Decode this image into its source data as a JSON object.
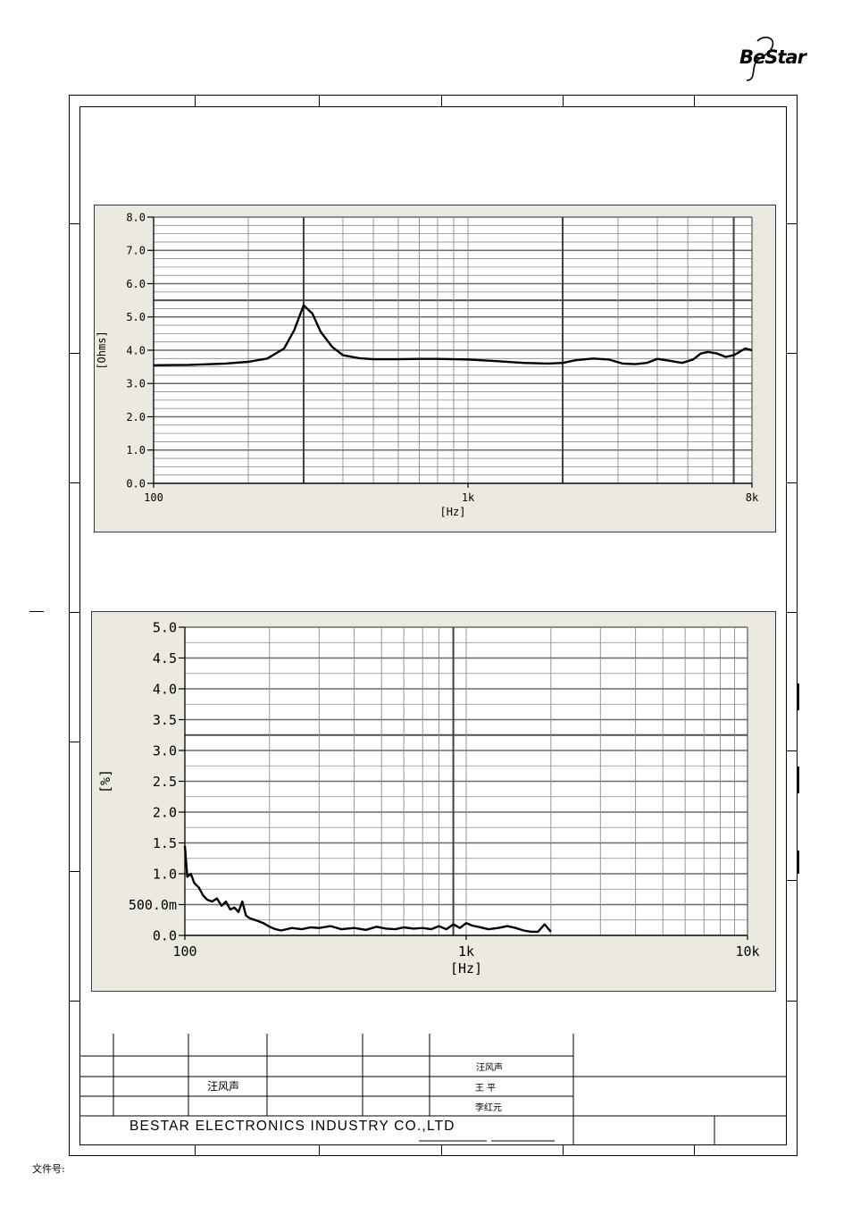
{
  "logo": {
    "text": "BeStar"
  },
  "footer": {
    "company": "BESTAR  ELECTRONICS  INDUSTRY  CO.,LTD",
    "document_number_label": "文件号:",
    "signatures": {
      "row1_col3": "",
      "designer_left": "汪风声",
      "designer_right": "汪风声",
      "checker": "王  平",
      "approver": "李红元"
    }
  },
  "chart_data": [
    {
      "type": "line",
      "title": "",
      "xlabel": "[Hz]",
      "ylabel": "[Ohms]",
      "xscale": "log",
      "xlim": [
        100,
        8000
      ],
      "ylim": [
        0,
        8
      ],
      "grid": true,
      "x_tick_labels": [
        "100",
        "1k",
        "8k"
      ],
      "y_tick_labels": [
        "0.0",
        "1.0",
        "2.0",
        "3.0",
        "4.0",
        "5.0",
        "6.0",
        "7.0",
        "8.0"
      ],
      "series": [
        {
          "x": [
            100,
            130,
            170,
            200,
            230,
            260,
            280,
            300,
            320,
            340,
            370,
            400,
            450,
            500,
            600,
            700,
            800,
            900,
            1000,
            1200,
            1500,
            1800,
            2000,
            2200,
            2500,
            2800,
            3100,
            3400,
            3700,
            4000,
            4400,
            4800,
            5200,
            5500,
            5800,
            6200,
            6600,
            7000,
            7300,
            7600,
            8000
          ],
          "y": [
            3.55,
            3.56,
            3.6,
            3.65,
            3.75,
            4.05,
            4.6,
            5.35,
            5.1,
            4.55,
            4.1,
            3.85,
            3.76,
            3.73,
            3.73,
            3.74,
            3.74,
            3.73,
            3.72,
            3.68,
            3.62,
            3.6,
            3.62,
            3.7,
            3.75,
            3.72,
            3.6,
            3.58,
            3.62,
            3.74,
            3.68,
            3.62,
            3.72,
            3.9,
            3.95,
            3.9,
            3.8,
            3.85,
            3.95,
            4.05,
            4.0
          ]
        }
      ]
    },
    {
      "type": "line",
      "title": "",
      "xlabel": "[Hz]",
      "ylabel": "[%]",
      "xscale": "log",
      "xlim": [
        100,
        10000
      ],
      "ylim": [
        0,
        5
      ],
      "grid": true,
      "x_tick_labels": [
        "100",
        "1k",
        "10k"
      ],
      "y_tick_labels": [
        "0.0",
        "500.0m",
        "1.0",
        "1.5",
        "2.0",
        "2.5",
        "3.0",
        "3.5",
        "4.0",
        "4.5",
        "5.0"
      ],
      "series": [
        {
          "x": [
            100,
            102,
            105,
            108,
            112,
            116,
            120,
            125,
            130,
            135,
            140,
            145,
            150,
            155,
            160,
            165,
            170,
            180,
            190,
            200,
            210,
            220,
            240,
            260,
            280,
            300,
            330,
            360,
            400,
            440,
            480,
            520,
            560,
            600,
            650,
            700,
            750,
            800,
            850,
            900,
            950,
            1000,
            1050,
            1100,
            1200,
            1300,
            1400,
            1500,
            1600,
            1700,
            1800,
            1900,
            2000
          ],
          "y": [
            1.45,
            0.95,
            1.0,
            0.85,
            0.78,
            0.65,
            0.58,
            0.55,
            0.6,
            0.48,
            0.55,
            0.42,
            0.45,
            0.38,
            0.55,
            0.32,
            0.28,
            0.24,
            0.2,
            0.14,
            0.1,
            0.08,
            0.12,
            0.1,
            0.13,
            0.12,
            0.15,
            0.1,
            0.12,
            0.09,
            0.14,
            0.11,
            0.1,
            0.13,
            0.11,
            0.12,
            0.1,
            0.15,
            0.1,
            0.18,
            0.12,
            0.2,
            0.16,
            0.14,
            0.1,
            0.12,
            0.15,
            0.12,
            0.08,
            0.06,
            0.06,
            0.18,
            0.06
          ]
        }
      ]
    }
  ]
}
